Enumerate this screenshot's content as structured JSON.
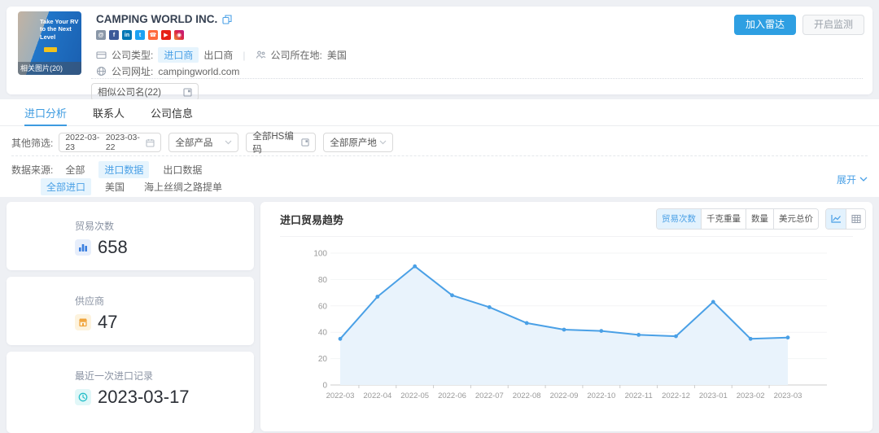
{
  "page": {
    "accent": "#3d9be0",
    "chip_bg": "#e6f4fd",
    "chip_text": "#4aa0e6"
  },
  "header": {
    "company_name": "CAMPING WORLD INC.",
    "thumbnail": {
      "promo_text": "Take Your RV to the Next Level",
      "caption": "相关图片(20)"
    },
    "company_info": {
      "type_label": "公司类型:",
      "type_importer": "进口商",
      "type_exporter": "出口商",
      "divider": "|",
      "location_label": "公司所在地:",
      "location": "美国",
      "website_label": "公司网址:",
      "website": "campingworld.com",
      "similar_select": "相似公司名(22)"
    },
    "actions": {
      "add_radar": "加入雷达",
      "monitor": "开启监测"
    }
  },
  "social": [
    {
      "name": "website",
      "glyph": "@",
      "bg": "#8a97a8"
    },
    {
      "name": "facebook",
      "glyph": "f",
      "bg": "#3b5998"
    },
    {
      "name": "linkedin",
      "glyph": "in",
      "bg": "#0077b5"
    },
    {
      "name": "twitter",
      "glyph": "t",
      "bg": "#1da1f2"
    },
    {
      "name": "phone",
      "glyph": "☎",
      "bg": "#ff6a3c"
    },
    {
      "name": "youtube",
      "glyph": "▶",
      "bg": "#e62117"
    },
    {
      "name": "instagram",
      "glyph": "◉",
      "bg": "#c13584"
    }
  ],
  "tabs": [
    {
      "label": "进口分析",
      "active": true
    },
    {
      "label": "联系人",
      "active": false
    },
    {
      "label": "公司信息",
      "active": false
    }
  ],
  "filters": {
    "label": "其他筛选:",
    "date_start": "2022-03-23",
    "date_end": "2023-03-22",
    "product": "全部产品",
    "hs_code": "全部HS编码",
    "origin": "全部原产地"
  },
  "data_source": {
    "label": "数据来源:",
    "primary": [
      {
        "label": "全部",
        "active": false
      },
      {
        "label": "进口数据",
        "active": true
      },
      {
        "label": "出口数据",
        "active": false
      }
    ],
    "secondary": [
      {
        "label": "全部进口",
        "active": true
      },
      {
        "label": "美国",
        "active": false
      },
      {
        "label": "海上丝绸之路提单",
        "active": false
      }
    ],
    "expand": "展开"
  },
  "stats": [
    {
      "label": "贸易次数",
      "value": "658",
      "icon": "bar-chart-icon",
      "color": "#3a7fe0"
    },
    {
      "label": "供应商",
      "value": "47",
      "icon": "supplier-icon",
      "color": "#f0a33a"
    },
    {
      "label": "最近一次进口记录",
      "value": "2023-03-17",
      "icon": "clock-icon",
      "color": "#27bfc9"
    }
  ],
  "trend": {
    "title": "进口贸易趋势",
    "metrics": [
      {
        "label": "贸易次数",
        "active": true
      },
      {
        "label": "千克重量",
        "active": false
      },
      {
        "label": "数量",
        "active": false
      },
      {
        "label": "美元总价",
        "active": false
      }
    ],
    "view_toggles": [
      "line-chart-icon",
      "table-icon"
    ]
  },
  "chart_data": {
    "type": "area",
    "title": "进口贸易趋势",
    "x": [
      "2022-03",
      "2022-04",
      "2022-05",
      "2022-06",
      "2022-07",
      "2022-08",
      "2022-09",
      "2022-10",
      "2022-11",
      "2022-12",
      "2023-01",
      "2023-02",
      "2023-03"
    ],
    "series": [
      {
        "name": "贸易次数",
        "values": [
          35,
          67,
          90,
          68,
          59,
          47,
          42,
          41,
          38,
          37,
          63,
          35,
          36
        ]
      }
    ],
    "xlabel": "",
    "ylabel": "",
    "ylim": [
      0,
      100
    ],
    "yticks": [
      0,
      20,
      40,
      60,
      80,
      100
    ],
    "grid": true,
    "legend": false,
    "line_color": "#4aa0e6",
    "fill_color": "#e9f3fc"
  }
}
